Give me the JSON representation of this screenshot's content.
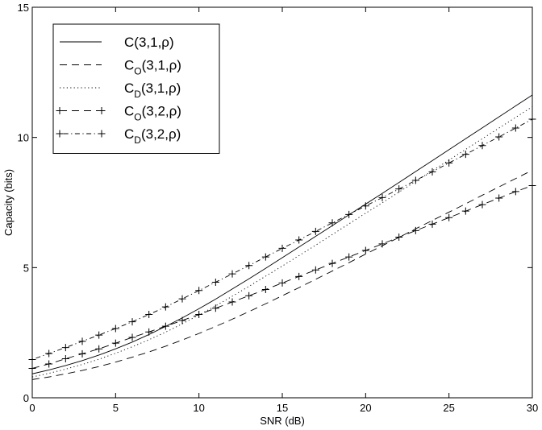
{
  "chart_data": {
    "type": "line",
    "xlabel": "SNR (dB)",
    "ylabel": "Capacity (bits)",
    "xlim": [
      0,
      30
    ],
    "ylim": [
      0,
      15
    ],
    "xticks": [
      0,
      5,
      10,
      15,
      20,
      25,
      30
    ],
    "yticks": [
      0,
      5,
      10,
      15
    ],
    "grid": false,
    "legend_position": "top-left",
    "x": [
      0,
      1,
      2,
      3,
      4,
      5,
      6,
      7,
      8,
      9,
      10,
      11,
      12,
      13,
      14,
      15,
      16,
      17,
      18,
      19,
      20,
      21,
      22,
      23,
      24,
      25,
      26,
      27,
      28,
      29,
      30
    ],
    "series": [
      {
        "name": "C(3,1,ρ)",
        "label_base": "C",
        "label_sub": "",
        "label_args": "(3,1,ρ)",
        "style": "solid",
        "markers": false,
        "values": [
          0.92,
          1.07,
          1.24,
          1.43,
          1.64,
          1.88,
          2.14,
          2.43,
          2.74,
          3.07,
          3.42,
          3.79,
          4.18,
          4.57,
          4.97,
          5.38,
          5.79,
          6.2,
          6.61,
          7.03,
          7.44,
          7.85,
          8.27,
          8.69,
          9.11,
          9.53,
          9.95,
          10.37,
          10.79,
          11.21,
          11.63
        ]
      },
      {
        "name": "C_O(3,1,ρ)",
        "label_base": "C",
        "label_sub": "O",
        "label_args": "(3,1,ρ)",
        "style": "dashed",
        "markers": false,
        "values": [
          0.7,
          0.8,
          0.92,
          1.05,
          1.2,
          1.37,
          1.56,
          1.76,
          1.98,
          2.22,
          2.47,
          2.74,
          3.02,
          3.31,
          3.61,
          3.92,
          4.23,
          4.55,
          4.87,
          5.19,
          5.52,
          5.84,
          6.16,
          6.49,
          6.81,
          7.13,
          7.45,
          7.78,
          8.1,
          8.42,
          8.74
        ]
      },
      {
        "name": "C_D(3,1,ρ)",
        "label_base": "C",
        "label_sub": "D",
        "label_args": "(3,1,ρ)",
        "style": "dotted",
        "markers": false,
        "values": [
          0.8,
          0.94,
          1.1,
          1.28,
          1.48,
          1.71,
          1.96,
          2.23,
          2.52,
          2.84,
          3.18,
          3.53,
          3.9,
          4.28,
          4.67,
          5.06,
          5.46,
          5.86,
          6.27,
          6.68,
          7.09,
          7.49,
          7.9,
          8.31,
          8.72,
          9.13,
          9.54,
          9.95,
          10.36,
          10.77,
          11.18
        ]
      },
      {
        "name": "C_O(3,2,ρ)",
        "label_base": "C",
        "label_sub": "O",
        "label_args": "(3,2,ρ)",
        "style": "dashed",
        "markers": true,
        "values": [
          1.13,
          1.3,
          1.5,
          1.69,
          1.88,
          2.1,
          2.32,
          2.53,
          2.75,
          2.97,
          3.2,
          3.44,
          3.68,
          3.92,
          4.16,
          4.41,
          4.66,
          4.91,
          5.16,
          5.41,
          5.66,
          5.91,
          6.17,
          6.42,
          6.67,
          6.92,
          7.17,
          7.42,
          7.67,
          7.92,
          8.15
        ]
      },
      {
        "name": "C_D(3,2,ρ)",
        "label_base": "C",
        "label_sub": "D",
        "label_args": "(3,2,ρ)",
        "style": "dashdot",
        "markers": true,
        "values": [
          1.47,
          1.7,
          1.93,
          2.17,
          2.41,
          2.66,
          2.92,
          3.2,
          3.49,
          3.8,
          4.12,
          4.44,
          4.76,
          5.08,
          5.41,
          5.74,
          6.06,
          6.39,
          6.72,
          7.04,
          7.37,
          7.69,
          8.02,
          8.35,
          8.68,
          9.02,
          9.35,
          9.69,
          10.02,
          10.36,
          10.7
        ]
      }
    ]
  }
}
